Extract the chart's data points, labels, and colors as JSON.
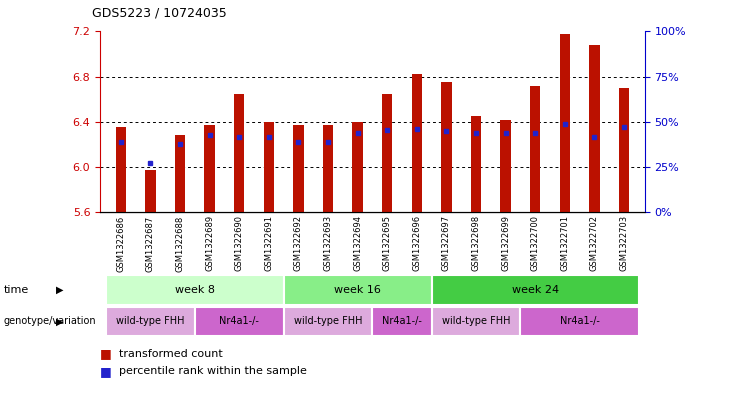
{
  "title": "GDS5223 / 10724035",
  "samples": [
    "GSM1322686",
    "GSM1322687",
    "GSM1322688",
    "GSM1322689",
    "GSM1322690",
    "GSM1322691",
    "GSM1322692",
    "GSM1322693",
    "GSM1322694",
    "GSM1322695",
    "GSM1322696",
    "GSM1322697",
    "GSM1322698",
    "GSM1322699",
    "GSM1322700",
    "GSM1322701",
    "GSM1322702",
    "GSM1322703"
  ],
  "bar_values": [
    6.35,
    5.97,
    6.28,
    6.37,
    6.65,
    6.4,
    6.37,
    6.37,
    6.4,
    6.65,
    6.82,
    6.75,
    6.45,
    6.42,
    6.72,
    7.18,
    7.08,
    6.7
  ],
  "percentile_values": [
    6.22,
    6.04,
    6.2,
    6.28,
    6.27,
    6.27,
    6.22,
    6.22,
    6.3,
    6.33,
    6.34,
    6.32,
    6.3,
    6.3,
    6.3,
    6.38,
    6.27,
    6.35
  ],
  "bar_bottom": 5.6,
  "ylim_left": [
    5.6,
    7.2
  ],
  "ylim_right": [
    0,
    100
  ],
  "yticks_left": [
    5.6,
    6.0,
    6.4,
    6.8,
    7.2
  ],
  "yticks_right": [
    0,
    25,
    50,
    75,
    100
  ],
  "bar_color": "#bb1100",
  "percentile_color": "#2222cc",
  "bar_width": 0.35,
  "grid_color": "#000000",
  "time_week8_color": "#ccffcc",
  "time_week16_color": "#88ee88",
  "time_week24_color": "#44cc44",
  "geno_wildtype_color": "#ddaadd",
  "geno_nr4a1_color": "#cc66cc",
  "legend_items": [
    "transformed count",
    "percentile rank within the sample"
  ],
  "legend_colors": [
    "#bb1100",
    "#2222cc"
  ],
  "bg_color": "#ffffff",
  "label_color_left": "#cc0000",
  "label_color_right": "#0000cc",
  "xtick_bg": "#dddddd"
}
